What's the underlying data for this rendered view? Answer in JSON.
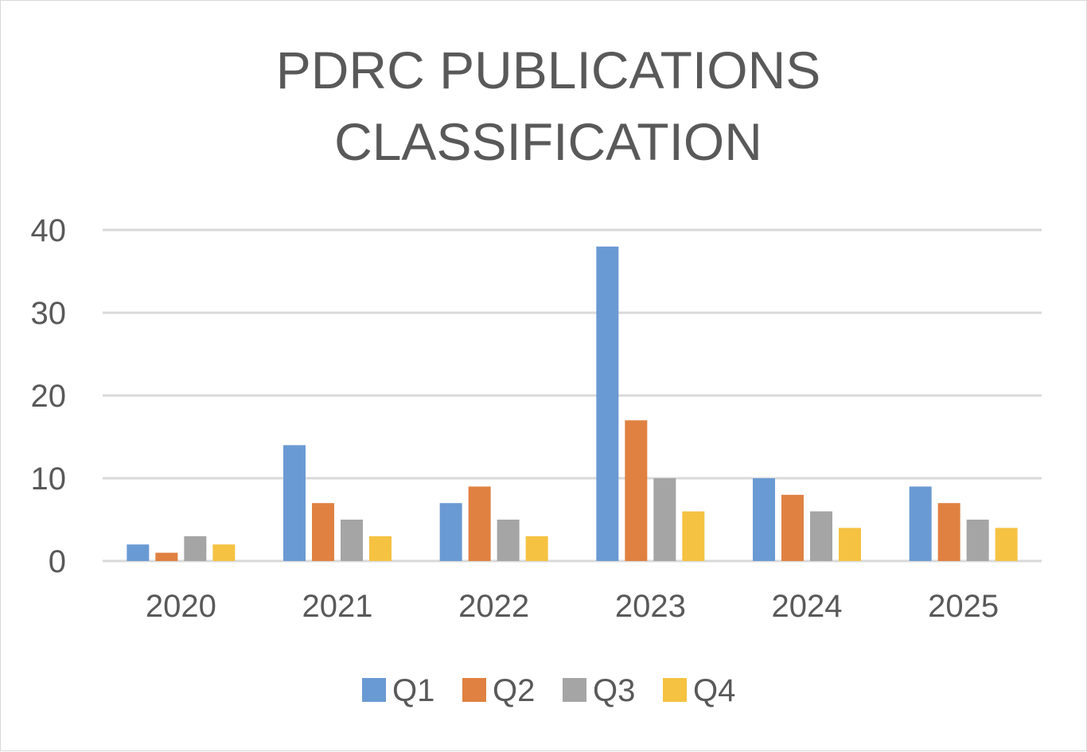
{
  "chart_data": {
    "type": "bar",
    "title_lines": [
      "PDRC PUBLICATIONS",
      "CLASSIFICATION"
    ],
    "categories": [
      "2020",
      "2021",
      "2022",
      "2023",
      "2024",
      "2025"
    ],
    "series": [
      {
        "name": "Q1",
        "color": "#6a9ad3",
        "values": [
          2,
          14,
          7,
          38,
          10,
          9
        ]
      },
      {
        "name": "Q2",
        "color": "#e08141",
        "values": [
          1,
          7,
          9,
          17,
          8,
          7
        ]
      },
      {
        "name": "Q3",
        "color": "#a5a5a5",
        "values": [
          3,
          5,
          5,
          10,
          6,
          5
        ]
      },
      {
        "name": "Q4",
        "color": "#f5c242",
        "values": [
          2,
          3,
          3,
          6,
          4,
          4
        ]
      }
    ],
    "ylim": [
      0,
      40
    ],
    "yticks": [
      "0",
      "10",
      "20",
      "30",
      "40"
    ],
    "grid": true,
    "legend_position": "bottom"
  }
}
